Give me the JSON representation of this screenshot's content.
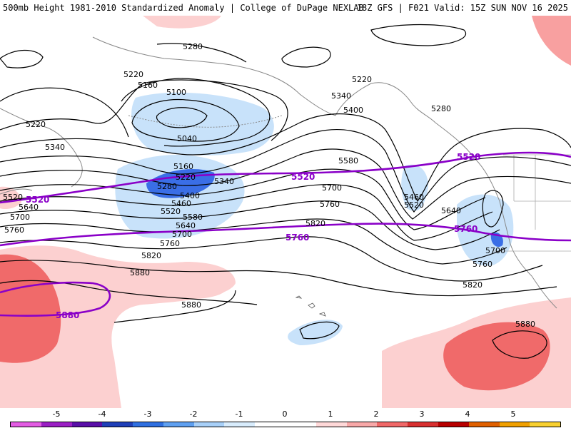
{
  "title": {
    "left": "500mb Height 1981-2010 Standardized Anomaly | College of DuPage NEXLAB",
    "right": "18Z GFS | F021 Valid: 15Z SUN NOV 16 2025"
  },
  "contour_labels": [
    "5280",
    "5220",
    "5160",
    "5100",
    "5040",
    "5220",
    "5340",
    "5160",
    "5220",
    "5280",
    "5340",
    "5400",
    "5460",
    "5520",
    "5580",
    "5640",
    "5700",
    "5760",
    "5820",
    "5880",
    "5880",
    "5220",
    "5340",
    "5400",
    "5280",
    "5580",
    "5700",
    "5760",
    "5820",
    "5460",
    "5520",
    "5640",
    "5700",
    "5760",
    "5820",
    "5880",
    "5520",
    "5640",
    "5700",
    "5760"
  ],
  "purple_labels": [
    "5520",
    "5520",
    "5520",
    "5760",
    "5760",
    "5880"
  ],
  "colorbar": {
    "ticks": [
      "-5",
      "-4",
      "-3",
      "-2",
      "-1",
      "0",
      "1",
      "2",
      "3",
      "4",
      "5"
    ],
    "colors": [
      "#e35ce3",
      "#9b1fc4",
      "#5a0fa8",
      "#1f3fb8",
      "#2f6fe0",
      "#5fa0f0",
      "#a8d0f8",
      "#d8ecfc",
      "#ffffff",
      "#ffffff",
      "#ffd8d8",
      "#f8a8a8",
      "#f06868",
      "#d83030",
      "#b80000",
      "#e06000",
      "#f0a000",
      "#f8d030"
    ]
  }
}
